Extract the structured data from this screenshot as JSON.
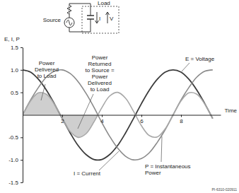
{
  "chart_data": {
    "type": "line",
    "xlabel": "Time",
    "ylabel": "E, I, P",
    "x": [
      0,
      0.4,
      0.8,
      1.2,
      1.6,
      2.0,
      2.4,
      2.8,
      3.2,
      3.6,
      4.0,
      4.4,
      4.8,
      5.2,
      5.6,
      6.0,
      6.4,
      6.8,
      7.2,
      7.6,
      8.0,
      8.4,
      8.8,
      9.2,
      9.6
    ],
    "series": [
      {
        "name": "E = Voltage",
        "color": "#3c3c3c",
        "values": [
          1,
          0.95,
          0.79,
          0.55,
          0.25,
          -0.08,
          -0.4,
          -0.68,
          -0.88,
          -0.99,
          -0.99,
          -0.88,
          -0.68,
          -0.4,
          -0.08,
          0.25,
          0.55,
          0.79,
          0.95,
          1,
          0.95,
          0.79,
          0.55,
          0.25,
          -0.08
        ]
      },
      {
        "name": "I = Current",
        "color": "#8a8a8a",
        "values": [
          0,
          0.33,
          0.61,
          0.84,
          0.97,
          1,
          0.92,
          0.74,
          0.48,
          0.17,
          -0.17,
          -0.48,
          -0.74,
          -0.92,
          -1,
          -0.97,
          -0.84,
          -0.61,
          -0.33,
          0,
          0.33,
          0.61,
          0.84,
          0.97,
          1
        ]
      },
      {
        "name": "P = Instantaneous Power",
        "color": "#a8a8a8",
        "values": [
          0,
          0.31,
          0.49,
          0.46,
          0.24,
          -0.08,
          -0.37,
          -0.5,
          -0.42,
          -0.16,
          0.16,
          0.42,
          0.5,
          0.37,
          0.08,
          -0.24,
          -0.46,
          -0.49,
          -0.31,
          0,
          0.31,
          0.49,
          0.46,
          0.24,
          -0.08
        ]
      }
    ],
    "xlim": [
      0,
      10
    ],
    "xticks": [
      2,
      4,
      6,
      8
    ],
    "ylim": [
      -1.5,
      1.5
    ],
    "yticks": [
      -1.5,
      {
        "value": -1,
        "label": "-1.0"
      },
      -0.5,
      0.5,
      {
        "value": 1,
        "label": "1.0"
      },
      1.5
    ],
    "grid": false,
    "annotations": [
      {
        "lines": [
          "Power",
          "Delivered",
          "to Load"
        ]
      },
      {
        "lines": [
          "Power",
          "Returned",
          "to Source =",
          "Power",
          "Delivered",
          "to Load"
        ]
      }
    ]
  },
  "inset": {
    "source": "Source",
    "load": "Load",
    "current": "I",
    "voltage": "V"
  },
  "figure_id": "PI-6310-020911"
}
